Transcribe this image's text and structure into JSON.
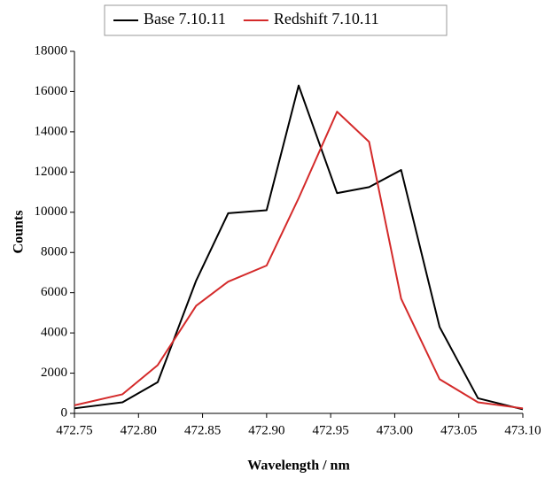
{
  "chart_data": {
    "type": "line",
    "x_label": "Wavelength / nm",
    "y_label": "Counts",
    "x": [
      472.75,
      472.7875,
      472.815,
      472.845,
      472.87,
      472.9,
      472.925,
      472.955,
      472.98,
      473.005,
      473.035,
      473.065,
      473.1
    ],
    "series": [
      {
        "name": "Base 7.10.11",
        "color": "#000000",
        "values": [
          250,
          550,
          1550,
          6600,
          9950,
          10100,
          16300,
          10950,
          11250,
          12100,
          4300,
          750,
          200
        ]
      },
      {
        "name": "Redshift 7.10.11",
        "color": "#d42a2a",
        "values": [
          400,
          950,
          2400,
          5350,
          6550,
          7350,
          10700,
          15000,
          13500,
          5700,
          1700,
          550,
          250
        ]
      }
    ],
    "xlim": [
      472.75,
      473.1
    ],
    "xticks": [
      {
        "value": 472.75,
        "label": "472.75"
      },
      {
        "value": 472.8,
        "label": "472.80"
      },
      {
        "value": 472.85,
        "label": "472.85"
      },
      {
        "value": 472.9,
        "label": "472.90"
      },
      {
        "value": 472.95,
        "label": "472.95"
      },
      {
        "value": 473.0,
        "label": "473.00"
      },
      {
        "value": 473.05,
        "label": "473.05"
      },
      {
        "value": 473.1,
        "label": "473.10"
      }
    ],
    "ylim": [
      0,
      18000
    ],
    "yticks": [
      0,
      2000,
      4000,
      6000,
      8000,
      10000,
      12000,
      14000,
      16000,
      18000
    ],
    "grid": false,
    "legend": "top"
  }
}
